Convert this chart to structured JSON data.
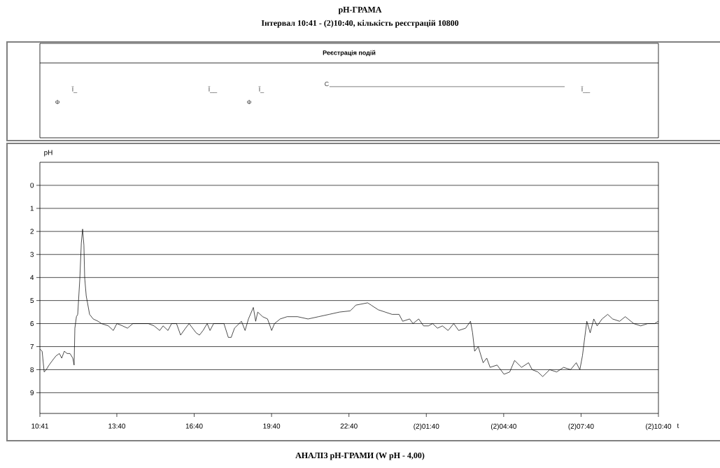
{
  "chart_data": [
    {
      "type": "other",
      "title": "Реєстрація подій",
      "annotations": [
        "Ф",
        "Ї_",
        "Ї__",
        "Ф",
        "Ї_",
        "С",
        "Ї__"
      ]
    },
    {
      "type": "line",
      "title": "pH-ГРАМА",
      "subtitle": "Інтервал 10:41 - (2)10:40, кількість реєстрацій 10800",
      "xlabel": "t",
      "ylabel": "pH",
      "annotations": [
        "АНАЛІЗ pH-ГРАМИ (W pH - 4,00)"
      ],
      "xlim": [
        10.6833,
        34.6667
      ],
      "ylim": [
        9.9,
        -1
      ],
      "grid": "y",
      "xticks": [
        {
          "value": 10.6833,
          "label": "10:41"
        },
        {
          "value": 13.6667,
          "label": "13:40"
        },
        {
          "value": 16.6667,
          "label": "16:40"
        },
        {
          "value": 19.6667,
          "label": "19:40"
        },
        {
          "value": 22.6667,
          "label": "22:40"
        },
        {
          "value": 25.6667,
          "label": "(2)01:40"
        },
        {
          "value": 28.6667,
          "label": "(2)04:40"
        },
        {
          "value": 31.6667,
          "label": "(2)07:40"
        },
        {
          "value": 34.6667,
          "label": "(2)10:40"
        }
      ],
      "yticks": [
        0,
        1,
        2,
        3,
        4,
        5,
        6,
        7,
        8,
        9
      ],
      "color": "#000000",
      "x": [
        10.6833,
        10.77,
        10.85,
        10.93,
        11.04,
        11.17,
        11.31,
        11.44,
        11.53,
        11.63,
        11.74,
        11.85,
        11.96,
        12.01,
        12.04,
        12.1,
        12.15,
        12.23,
        12.29,
        12.34,
        12.39,
        12.42,
        12.48,
        12.53,
        12.61,
        12.75,
        12.94,
        13.07,
        13.34,
        13.53,
        13.67,
        13.89,
        14.08,
        14.29,
        14.57,
        14.89,
        15.11,
        15.33,
        15.46,
        15.65,
        15.79,
        15.98,
        16.14,
        16.33,
        16.47,
        16.74,
        16.87,
        17.01,
        17.17,
        17.28,
        17.42,
        17.82,
        17.99,
        18.1,
        18.23,
        18.5,
        18.64,
        18.77,
        18.96,
        19.05,
        19.13,
        19.32,
        19.51,
        19.67,
        19.78,
        20.0,
        20.27,
        20.67,
        21.08,
        21.49,
        21.9,
        22.3,
        22.71,
        22.85,
        22.93,
        23.39,
        23.53,
        23.8,
        24.07,
        24.34,
        24.61,
        24.75,
        25.02,
        25.15,
        25.37,
        25.56,
        25.75,
        25.91,
        26.1,
        26.29,
        26.51,
        26.73,
        26.92,
        27.19,
        27.38,
        27.46,
        27.54,
        27.68,
        27.87,
        28.01,
        28.14,
        28.41,
        28.68,
        28.9,
        29.09,
        29.36,
        29.63,
        29.77,
        29.99,
        30.18,
        30.45,
        30.72,
        30.99,
        31.26,
        31.48,
        31.62,
        31.72,
        31.81,
        31.89,
        32.02,
        32.16,
        32.29,
        32.48,
        32.7,
        32.89,
        33.16,
        33.38,
        33.71,
        33.98,
        34.25,
        34.52,
        34.66
      ],
      "values": [
        7.1,
        7.2,
        8.1,
        8.0,
        7.8,
        7.6,
        7.4,
        7.3,
        7.5,
        7.2,
        7.3,
        7.3,
        7.5,
        7.8,
        6.2,
        5.7,
        5.6,
        4.1,
        2.5,
        1.9,
        2.6,
        4.0,
        4.8,
        5.1,
        5.6,
        5.8,
        5.9,
        6.0,
        6.1,
        6.3,
        6.0,
        6.1,
        6.2,
        6.0,
        6.0,
        6.0,
        6.1,
        6.3,
        6.1,
        6.3,
        6.0,
        6.0,
        6.5,
        6.2,
        6.0,
        6.4,
        6.5,
        6.3,
        6.0,
        6.3,
        6.0,
        6.0,
        6.6,
        6.6,
        6.2,
        5.9,
        6.3,
        5.8,
        5.3,
        5.9,
        5.5,
        5.7,
        5.8,
        6.3,
        6.0,
        5.8,
        5.7,
        5.7,
        5.8,
        5.7,
        5.6,
        5.5,
        5.45,
        5.3,
        5.2,
        5.1,
        5.2,
        5.4,
        5.5,
        5.6,
        5.6,
        5.9,
        5.8,
        6.0,
        5.8,
        6.1,
        6.1,
        6.0,
        6.2,
        6.1,
        6.3,
        6.0,
        6.3,
        6.2,
        5.9,
        6.4,
        7.2,
        7.0,
        7.7,
        7.5,
        7.9,
        7.8,
        8.2,
        8.1,
        7.6,
        7.9,
        7.7,
        8.0,
        8.1,
        8.3,
        8.0,
        8.1,
        7.9,
        8.0,
        7.7,
        8.0,
        7.4,
        6.6,
        5.9,
        6.4,
        5.8,
        6.1,
        5.8,
        5.6,
        5.8,
        5.9,
        5.7,
        6.0,
        6.1,
        6.0,
        6.0,
        5.9
      ]
    }
  ]
}
